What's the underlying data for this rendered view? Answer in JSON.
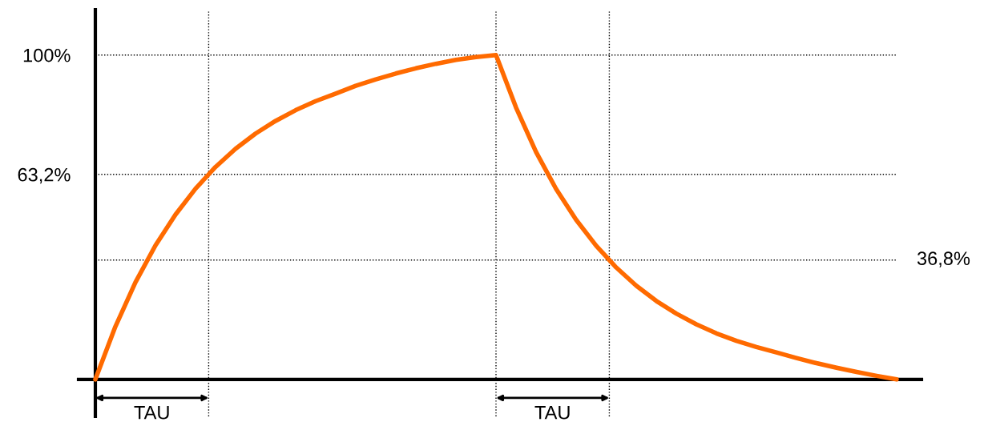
{
  "chart_data": {
    "type": "line",
    "tick_labels": "y",
    "grid": false,
    "legend": false,
    "marker": "none",
    "line_style": "solid",
    "categories": [
      null,
      null,
      null,
      null,
      null,
      null,
      null,
      null,
      null,
      null,
      null,
      null,
      null,
      null,
      null,
      null,
      null,
      null,
      null,
      null,
      null,
      null,
      null,
      null,
      null,
      null,
      null,
      null,
      null,
      null,
      null,
      null,
      null,
      null,
      null,
      null,
      null,
      null,
      null,
      null,
      null
    ],
    "series": [
      {
        "color": "#ff6a00",
        "values": [
          0,
          16.3,
          29.9,
          41.3,
          50.8,
          58.8,
          65.5,
          71.1,
          75.8,
          79.7,
          83.0,
          85.8,
          88.1,
          90.5,
          92.5,
          94.3,
          95.9,
          97.3,
          98.5,
          99.4,
          100,
          83.8,
          70.1,
          58.7,
          49.2,
          41.2,
          34.5,
          28.9,
          24.2,
          20.3,
          17.0,
          14.2,
          11.9,
          10.0,
          8.3,
          6.6,
          5.0,
          3.6,
          2.3,
          1.1,
          0
        ]
      }
    ],
    "ylim": [
      -11.4,
      114
    ],
    "yticks": [
      {
        "value": 63.2,
        "label": "63,2%"
      },
      {
        "value": 100,
        "label": "100%"
      }
    ],
    "ref_lines": [
      {
        "axis": "y",
        "value": 100,
        "line_style": "dotted",
        "color": "#000000"
      },
      {
        "axis": "y",
        "value": 63.2,
        "line_style": "dotted",
        "color": "#000000"
      },
      {
        "axis": "y",
        "value": 36.8,
        "label": "36,8%",
        "line_style": "dotted",
        "color": "#000000"
      }
    ],
    "annotations": [
      "TAU",
      "TAU"
    ]
  }
}
